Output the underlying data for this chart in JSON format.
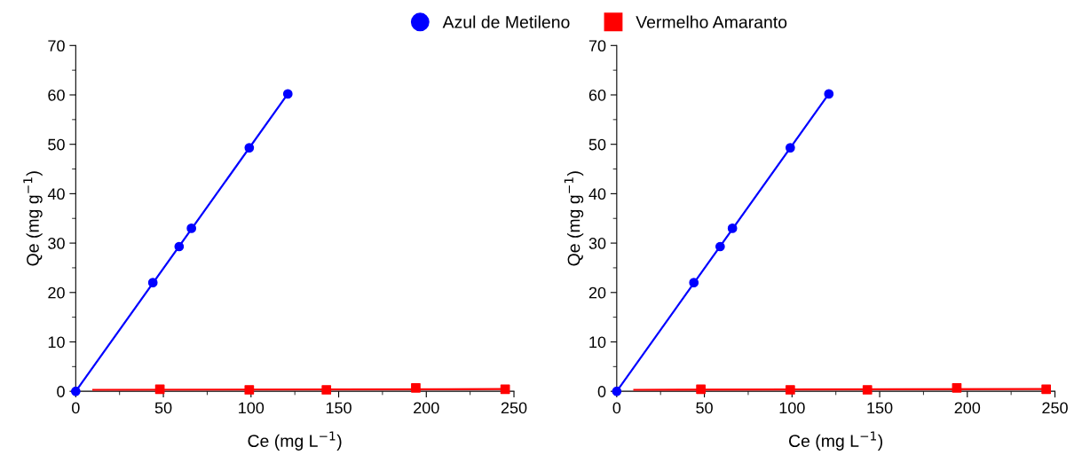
{
  "chart_data": [
    {
      "type": "scatter",
      "xlabel": "Ce (mg L$^{−1}$)",
      "ylabel": "Qe (mg g$^{−1}$)",
      "xlim": [
        0,
        250
      ],
      "xticks": [
        0,
        50,
        100,
        150,
        200,
        250
      ],
      "ylim": [
        0,
        70
      ],
      "yticks": [
        0,
        10,
        20,
        30,
        40,
        50,
        60,
        70
      ],
      "legend": "top",
      "grid": false,
      "series": [
        {
          "name": "Azul de Metileno",
          "color": "#0000ff",
          "marker": "circle",
          "x": [
            0,
            44,
            59,
            66,
            99,
            121
          ],
          "values": [
            0,
            22,
            29.3,
            33,
            49.3,
            60.2
          ]
        },
        {
          "name": "Vermelho Amaranto",
          "color": "#ff0000",
          "marker": "square",
          "x": [
            48,
            99,
            143,
            194,
            245
          ],
          "values": [
            0.4,
            0.3,
            0.3,
            0.7,
            0.4
          ]
        },
        {
          "type": "line",
          "color": "#0000ff",
          "x": [
            0,
            121
          ],
          "values": [
            0,
            60.2
          ]
        },
        {
          "type": "line",
          "color": "#ff0000",
          "x": [
            10,
            246
          ],
          "values": [
            0.3,
            0.45
          ]
        }
      ]
    },
    {
      "type": "scatter",
      "xlabel": "Ce (mg L$^{−1}$)",
      "ylabel": "Qe (mg g$^{−1}$)",
      "xlim": [
        0,
        250
      ],
      "xticks": [
        0,
        50,
        100,
        150,
        200,
        250
      ],
      "ylim": [
        0,
        70
      ],
      "yticks": [
        0,
        10,
        20,
        30,
        40,
        50,
        60,
        70
      ],
      "grid": false,
      "series": [
        {
          "color": "#0000ff",
          "marker": "circle",
          "x": [
            0,
            44,
            59,
            66,
            99,
            121
          ],
          "values": [
            0,
            22,
            29.3,
            33,
            49.3,
            60.2
          ]
        },
        {
          "color": "#ff0000",
          "marker": "square",
          "x": [
            48,
            99,
            143,
            194,
            245
          ],
          "values": [
            0.4,
            0.3,
            0.3,
            0.7,
            0.4
          ]
        },
        {
          "type": "line",
          "color": "#0000ff",
          "x": [
            0,
            121
          ],
          "values": [
            0,
            60.2
          ]
        },
        {
          "type": "line",
          "color": "#ff0000",
          "x": [
            10,
            246
          ],
          "values": [
            0.3,
            0.45
          ]
        }
      ]
    }
  ]
}
